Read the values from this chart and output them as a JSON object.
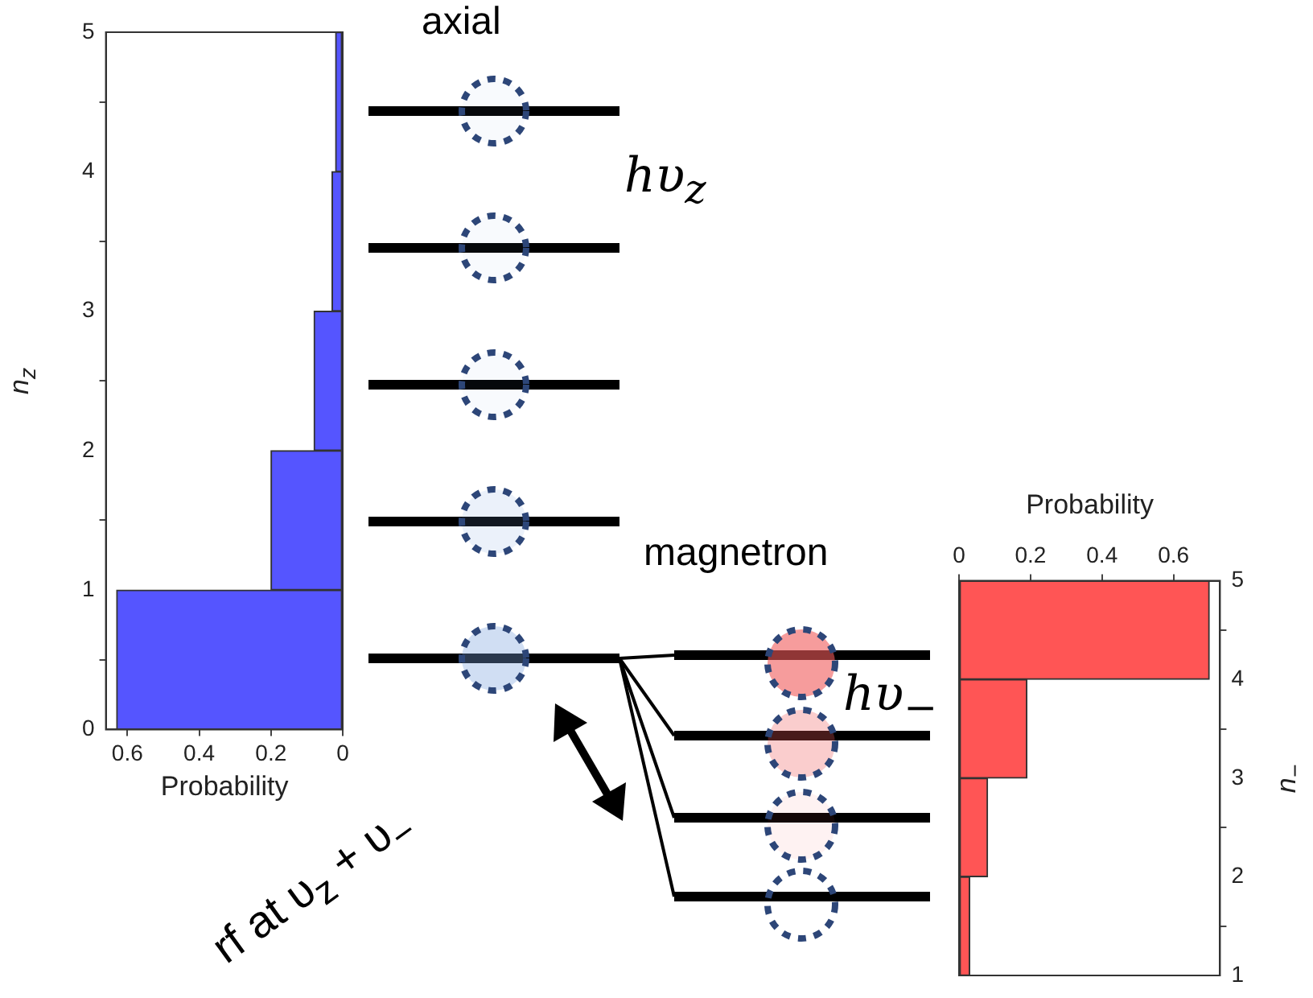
{
  "chart_data": [
    {
      "type": "histogram",
      "orientation": "horizontal",
      "bins": [
        0,
        1,
        2,
        3,
        4,
        5
      ],
      "values": [
        0.63,
        0.2,
        0.08,
        0.03,
        0.02
      ],
      "color": "#5555ff",
      "xlim": [
        0.66,
        0
      ],
      "xticks": [
        0.6,
        0.4,
        0.2,
        0
      ],
      "ylim": [
        0,
        5
      ],
      "yticks": [
        0,
        1,
        2,
        3,
        4,
        5
      ],
      "xlabel": "Probability",
      "ylabel": "n$_{z}$"
    },
    {
      "type": "histogram",
      "orientation": "horizontal",
      "bins": [
        1,
        2,
        3,
        4,
        5
      ],
      "values": [
        0.03,
        0.08,
        0.19,
        0.7
      ],
      "color": "#ff5555",
      "xlim": [
        0,
        0.73
      ],
      "xticks": [
        0,
        0.2,
        0.4,
        0.6
      ],
      "ylim": [
        1,
        5
      ],
      "yticks": [
        1,
        2,
        3,
        4,
        5
      ],
      "xlabel": "Probability",
      "ylabel": "n$_{−}$"
    },
    {
      "type": "other",
      "annotations": [
        "axial",
        "magnetron",
        "hυ$_{z}$",
        "hυ$_{−}$",
        "rf at υ$_{z}$ + υ$_{−}$"
      ]
    }
  ]
}
